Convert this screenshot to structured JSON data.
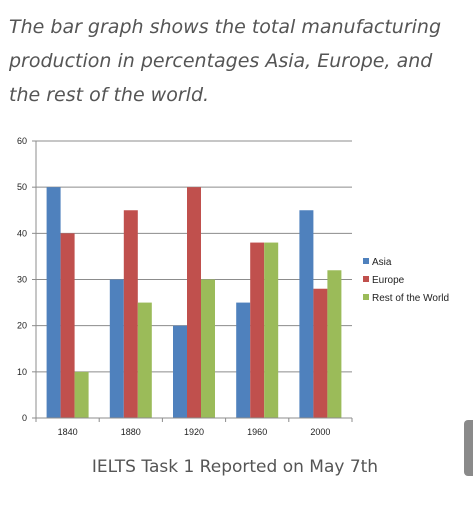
{
  "header": {
    "text": "The bar graph shows the total manufacturing production in percentages Asia, Europe, and the rest of the world."
  },
  "caption": "IELTS Task 1 Reported on May 7th",
  "chart_data": {
    "type": "bar",
    "title": "",
    "xlabel": "",
    "ylabel": "",
    "categories": [
      "1840",
      "1880",
      "1920",
      "1960",
      "2000"
    ],
    "ylim": [
      0,
      60
    ],
    "yticks": [
      0,
      10,
      20,
      30,
      40,
      50,
      60
    ],
    "grid": true,
    "legend_position": "right",
    "series": [
      {
        "name": "Asia",
        "color": "#4F81BD",
        "values": [
          50,
          30,
          20,
          25,
          45
        ]
      },
      {
        "name": "Europe",
        "color": "#C0504D",
        "values": [
          40,
          45,
          50,
          38,
          28
        ]
      },
      {
        "name": "Rest of the World",
        "color": "#9BBB59",
        "values": [
          10,
          25,
          30,
          38,
          32
        ]
      }
    ]
  }
}
